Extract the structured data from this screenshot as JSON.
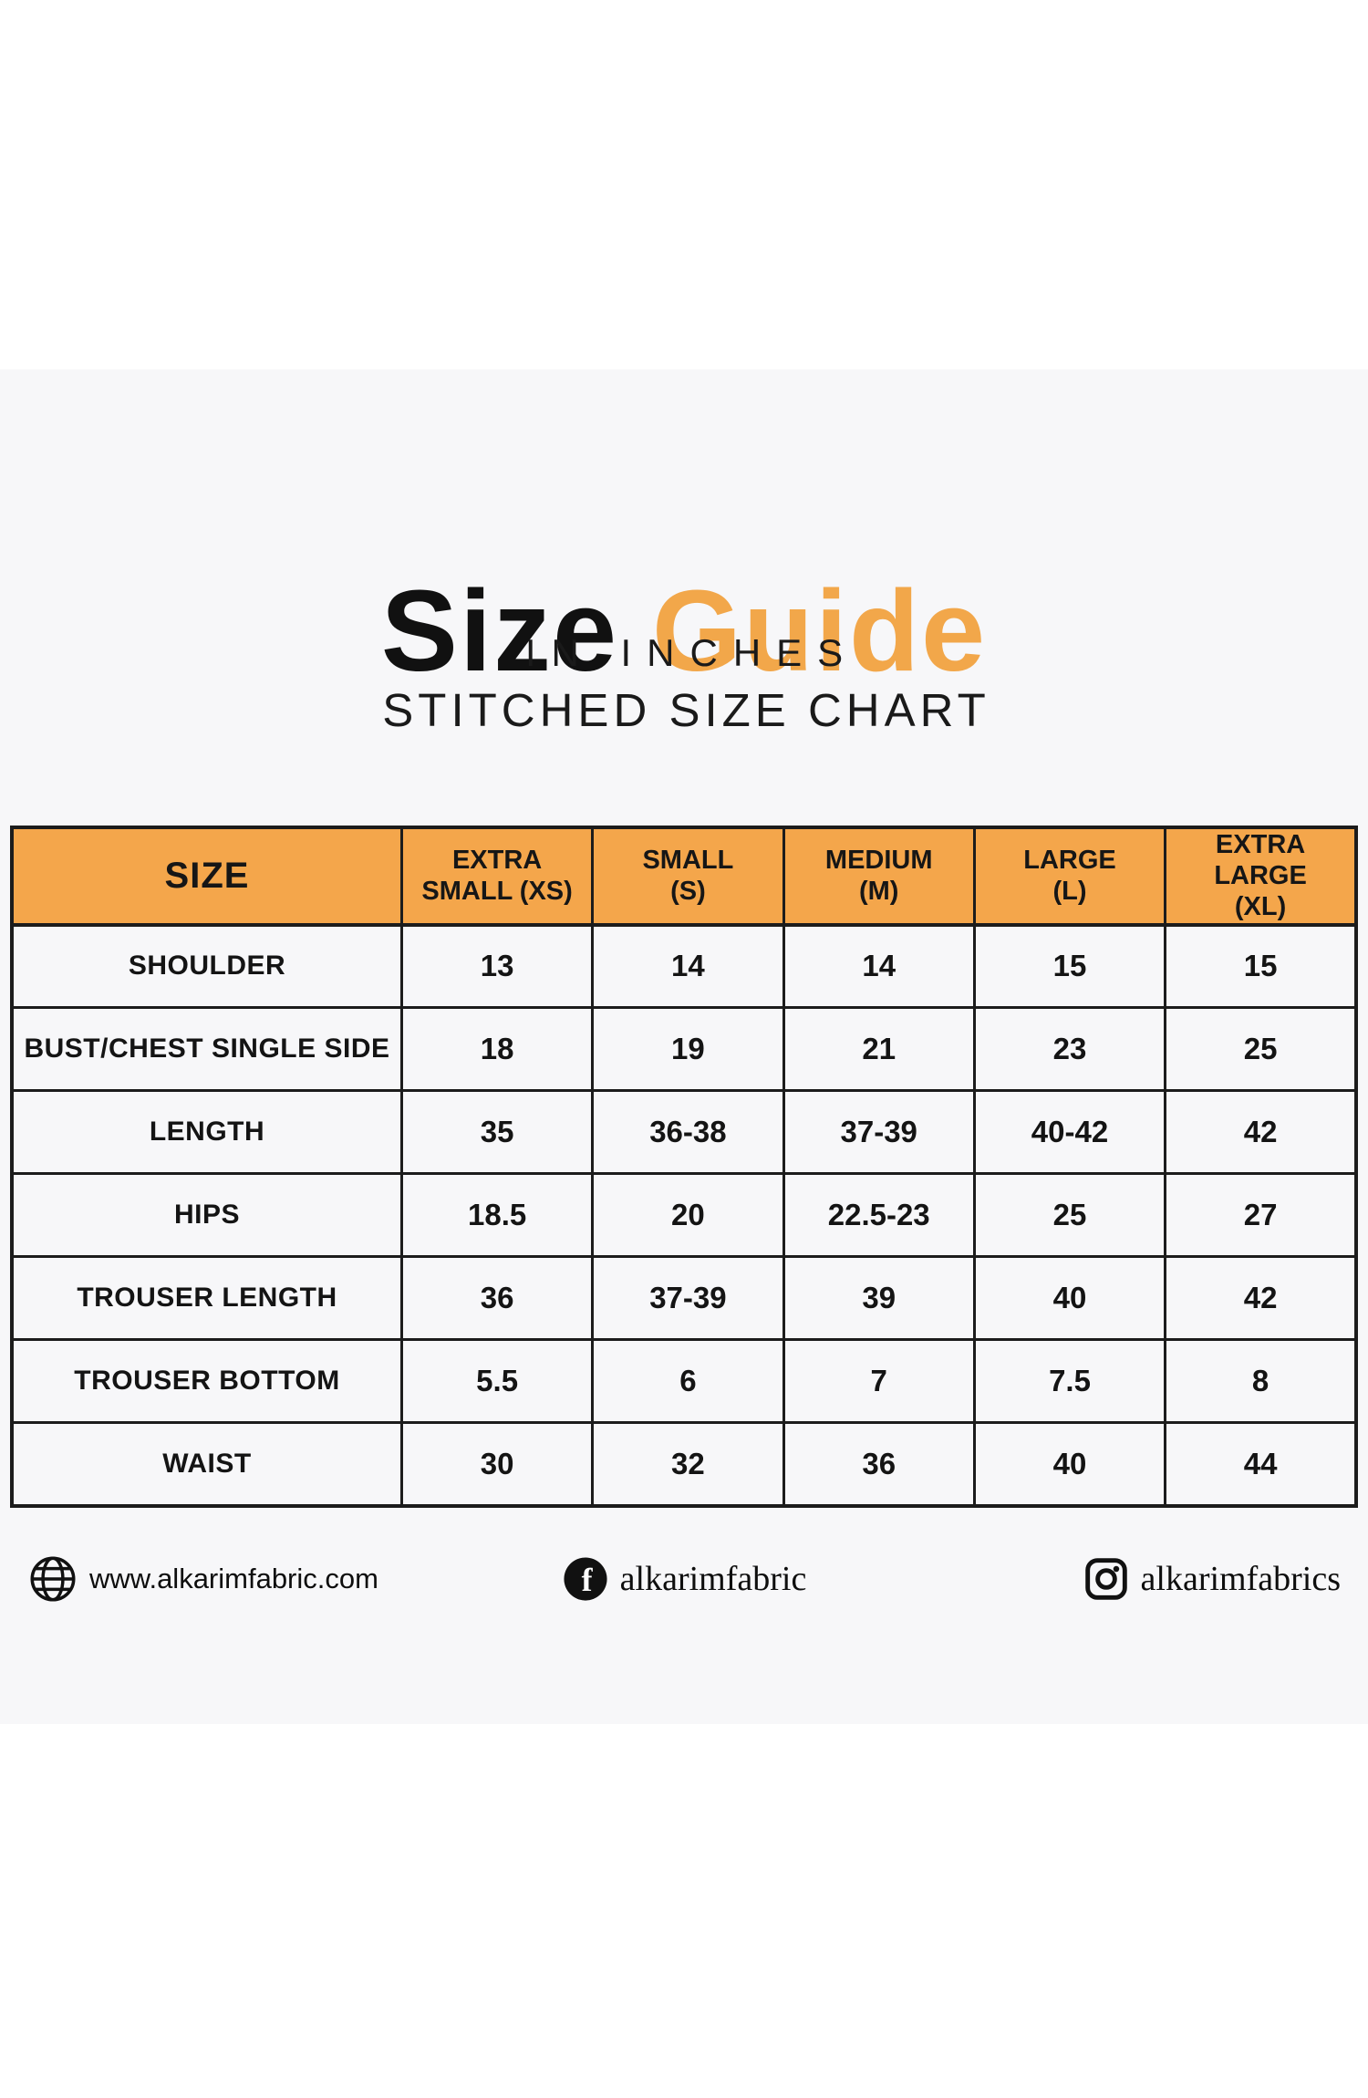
{
  "title": {
    "black": "Size",
    "orange": "Guide"
  },
  "subtitle_line1": "IN INCHES",
  "subtitle_line2": "STITCHED SIZE CHART",
  "colors": {
    "accent_orange": "#F2A74A",
    "table_header_bg": "#F4A64B",
    "panel_bg": "#F7F7F9",
    "table_border": "#1C1C1C",
    "text": "#141414"
  },
  "chart_data": {
    "type": "table",
    "title": "Size Guide - Stitched Size Chart (in inches)",
    "columns": [
      {
        "line1": "SIZE",
        "line2": ""
      },
      {
        "line1": "EXTRA",
        "line2": "SMALL (XS)"
      },
      {
        "line1": "SMALL",
        "line2": "(S)"
      },
      {
        "line1": "MEDIUM",
        "line2": "(M)"
      },
      {
        "line1": "LARGE",
        "line2": "(L)"
      },
      {
        "line1": "EXTRA LARGE",
        "line2": "(XL)"
      }
    ],
    "rows": [
      {
        "label": "SHOULDER",
        "values": [
          "13",
          "14",
          "14",
          "15",
          "15"
        ]
      },
      {
        "label": "BUST/CHEST SINGLE SIDE",
        "values": [
          "18",
          "19",
          "21",
          "23",
          "25"
        ]
      },
      {
        "label": "LENGTH",
        "values": [
          "35",
          "36-38",
          "37-39",
          "40-42",
          "42"
        ]
      },
      {
        "label": "HIPS",
        "values": [
          "18.5",
          "20",
          "22.5-23",
          "25",
          "27"
        ]
      },
      {
        "label": "TROUSER LENGTH",
        "values": [
          "36",
          "37-39",
          "39",
          "40",
          "42"
        ]
      },
      {
        "label": "TROUSER BOTTOM",
        "values": [
          "5.5",
          "6",
          "7",
          "7.5",
          "8"
        ]
      },
      {
        "label": "WAIST",
        "values": [
          "30",
          "32",
          "36",
          "40",
          "44"
        ]
      }
    ]
  },
  "footer": {
    "website": {
      "icon": "globe-icon",
      "text": "www.alkarimfabric.com"
    },
    "facebook": {
      "icon": "facebook-icon",
      "text": "alkarimfabric"
    },
    "instagram": {
      "icon": "instagram-icon",
      "text": "alkarimfabrics"
    }
  }
}
